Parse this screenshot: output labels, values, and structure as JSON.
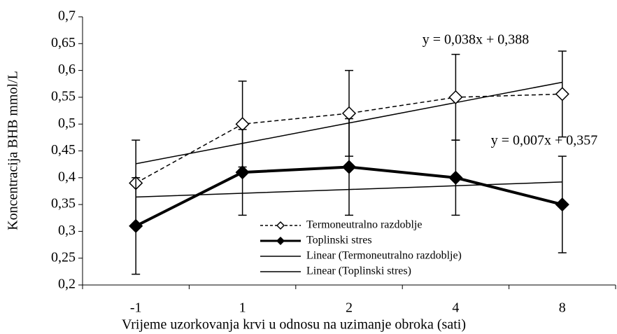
{
  "chart_data": {
    "type": "line",
    "xlabel": "Vrijeme uzorkovanja krvi u odnosu na uzimanje obroka (sati)",
    "ylabel": "Koncentracija BHB mmol/L",
    "categories": [
      "-1",
      "1",
      "2",
      "4",
      "8"
    ],
    "ylim": [
      0.2,
      0.7
    ],
    "yticks": [
      {
        "value": 0.2,
        "label": "0,2"
      },
      {
        "value": 0.25,
        "label": "0,25"
      },
      {
        "value": 0.3,
        "label": "0,3"
      },
      {
        "value": 0.35,
        "label": "0,35"
      },
      {
        "value": 0.4,
        "label": "0,4"
      },
      {
        "value": 0.45,
        "label": "0,45"
      },
      {
        "value": 0.5,
        "label": "0,5"
      },
      {
        "value": 0.55,
        "label": "0,55"
      },
      {
        "value": 0.6,
        "label": "0,6"
      },
      {
        "value": 0.65,
        "label": "0,65"
      },
      {
        "value": 0.7,
        "label": "0,7"
      }
    ],
    "grid": false,
    "series": [
      {
        "name": "Termoneutralno razdoblje",
        "color": "#000000",
        "values": [
          0.39,
          0.5,
          0.52,
          0.55,
          0.556
        ],
        "errors": [
          0.08,
          0.08,
          0.08,
          0.08,
          0.08
        ],
        "dashed": true,
        "marker": "diamond",
        "marker_fill": "#ffffff",
        "line_width": 1.5
      },
      {
        "name": "Toplinski stres",
        "color": "#000000",
        "values": [
          0.31,
          0.41,
          0.42,
          0.4,
          0.35
        ],
        "errors": [
          0.09,
          0.08,
          0.09,
          0.07,
          0.09
        ],
        "dashed": false,
        "marker": "diamond",
        "marker_fill": "#000000",
        "line_width": 4
      },
      {
        "name": "Linear (Termoneutralno razdoblje)",
        "color": "#000000",
        "values": [
          0.426,
          0.464,
          0.502,
          0.54,
          0.578
        ],
        "dashed": false,
        "line_width": 1.5
      },
      {
        "name": "Linear (Toplinski stres)",
        "color": "#000000",
        "values": [
          0.364,
          0.371,
          0.378,
          0.385,
          0.392
        ],
        "dashed": false,
        "line_width": 1.5
      }
    ],
    "annotations": [
      "y = 0,038x + 0,388",
      "y = 0,007x + 0,357"
    ]
  }
}
